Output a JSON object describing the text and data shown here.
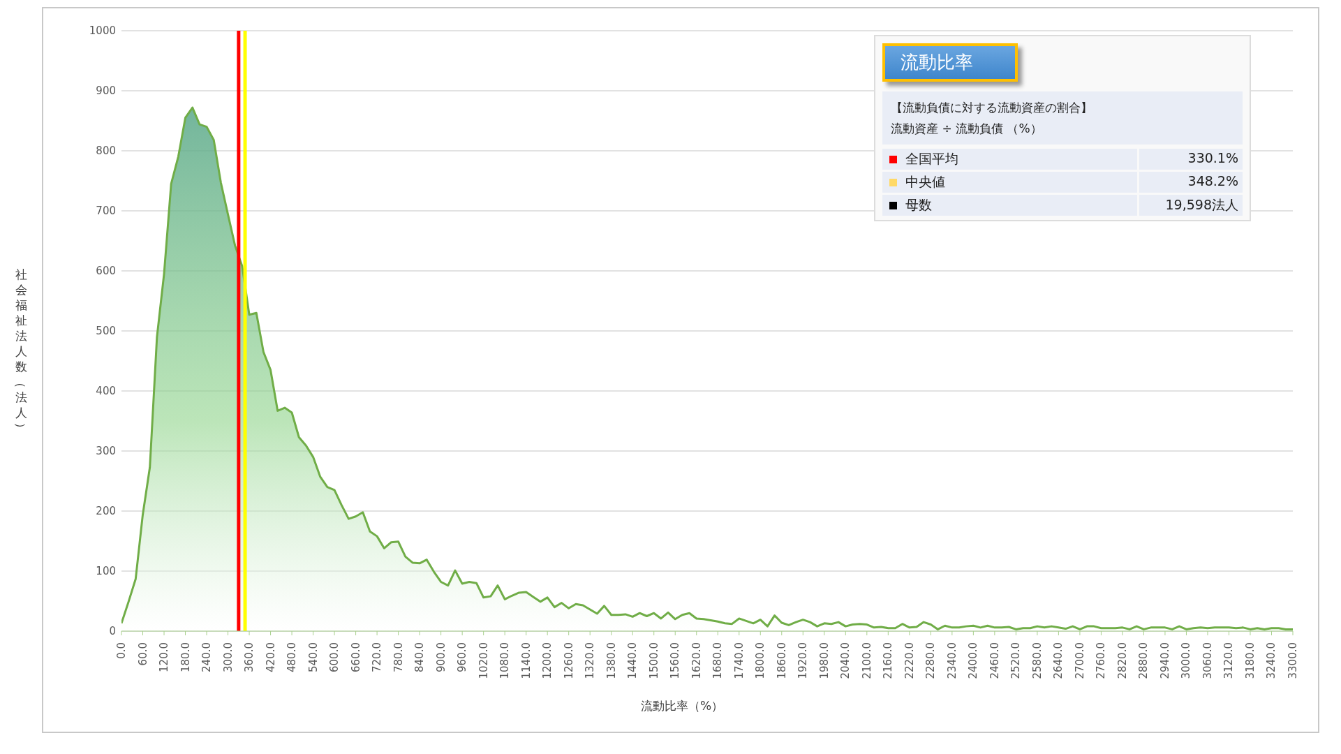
{
  "chart_data": {
    "type": "area",
    "title": "流動比率",
    "subtitle": "【流動負債に対する流動資産の割合】",
    "xlabel": "流動比率（%）",
    "ylabel": "社会福祉法人数（法人）",
    "x": [
      0,
      20,
      40,
      60,
      80,
      100,
      120,
      140,
      160,
      180,
      200,
      220,
      240,
      260,
      280,
      300,
      320,
      340,
      360,
      380,
      400,
      420,
      440,
      460,
      480,
      500,
      520,
      540,
      560,
      580,
      600,
      620,
      640,
      660,
      680,
      700,
      720,
      740,
      760,
      780,
      800,
      820,
      840,
      860,
      880,
      900,
      920,
      940,
      960,
      980,
      1000,
      1020,
      1040,
      1060,
      1080,
      1100,
      1120,
      1140,
      1160,
      1180,
      1200,
      1220,
      1240,
      1260,
      1280,
      1300,
      1320,
      1340,
      1360,
      1380,
      1400,
      1420,
      1440,
      1460,
      1480,
      1500,
      1520,
      1540,
      1560,
      1580,
      1600,
      1620,
      1640,
      1660,
      1680,
      1700,
      1720,
      1740,
      1760,
      1780,
      1800,
      1820,
      1840,
      1860,
      1880,
      1900,
      1920,
      1940,
      1960,
      1980,
      2000,
      2020,
      2040,
      2060,
      2080,
      2100,
      2120,
      2140,
      2160,
      2180,
      2200,
      2220,
      2240,
      2260,
      2280,
      2300,
      2320,
      2340,
      2360,
      2380,
      2400,
      2420,
      2440,
      2460,
      2480,
      2500,
      2520,
      2540,
      2560,
      2580,
      2600,
      2620,
      2640,
      2660,
      2680,
      2700,
      2720,
      2740,
      2760,
      2780,
      2800,
      2820,
      2840,
      2860,
      2880,
      2900,
      2920,
      2940,
      2960,
      2980,
      3000,
      3020,
      3040,
      3060,
      3080,
      3100,
      3120,
      3140,
      3160,
      3180,
      3200,
      3220,
      3240,
      3260,
      3280,
      3300
    ],
    "series": [
      {
        "color": "#70ad47",
        "values": [
          13,
          49,
          87,
          194,
          273,
          490,
          595,
          745,
          790,
          855,
          872,
          844,
          840,
          818,
          747,
          694,
          642,
          608,
          527,
          530,
          465,
          435,
          367,
          372,
          364,
          323,
          309,
          290,
          257,
          240,
          235,
          210,
          187,
          191,
          198,
          166,
          158,
          138,
          148,
          149,
          124,
          114,
          113,
          119,
          99,
          82,
          76,
          101,
          79,
          82,
          80,
          56,
          58,
          76,
          53,
          59,
          64,
          65,
          57,
          49,
          56,
          40,
          47,
          38,
          45,
          43,
          36,
          29,
          42,
          27,
          27,
          28,
          24,
          30,
          25,
          30,
          21,
          31,
          20,
          27,
          30,
          21,
          20,
          18,
          16,
          13,
          12,
          21,
          17,
          13,
          19,
          8,
          26,
          14,
          10,
          15,
          19,
          15,
          8,
          13,
          12,
          15,
          8,
          11,
          12,
          11,
          6,
          7,
          5,
          5,
          12,
          6,
          7,
          15,
          11,
          3,
          9,
          6,
          6,
          8,
          9,
          6,
          9,
          6,
          6,
          7,
          3,
          5,
          5,
          8,
          6,
          8,
          6,
          4,
          8,
          3,
          8,
          8,
          5,
          5,
          5,
          6,
          3,
          8,
          3,
          6,
          6,
          6,
          3,
          8,
          3,
          5,
          6,
          5,
          6,
          6,
          6,
          5,
          6,
          3,
          5,
          3,
          5,
          5,
          3,
          3
        ]
      }
    ],
    "xlim": [
      0,
      3300
    ],
    "xticks": [
      {
        "value": 0,
        "label": "0.0"
      },
      {
        "value": 60,
        "label": "60.0"
      },
      {
        "value": 120,
        "label": "120.0"
      },
      {
        "value": 180,
        "label": "180.0"
      },
      {
        "value": 240,
        "label": "240.0"
      },
      {
        "value": 300,
        "label": "300.0"
      },
      {
        "value": 360,
        "label": "360.0"
      },
      {
        "value": 420,
        "label": "420.0"
      },
      {
        "value": 480,
        "label": "480.0"
      },
      {
        "value": 540,
        "label": "540.0"
      },
      {
        "value": 600,
        "label": "600.0"
      },
      {
        "value": 660,
        "label": "660.0"
      },
      {
        "value": 720,
        "label": "720.0"
      },
      {
        "value": 780,
        "label": "780.0"
      },
      {
        "value": 840,
        "label": "840.0"
      },
      {
        "value": 900,
        "label": "900.0"
      },
      {
        "value": 960,
        "label": "960.0"
      },
      {
        "value": 1020,
        "label": "1020.0"
      },
      {
        "value": 1080,
        "label": "1080.0"
      },
      {
        "value": 1140,
        "label": "1140.0"
      },
      {
        "value": 1200,
        "label": "1200.0"
      },
      {
        "value": 1260,
        "label": "1260.0"
      },
      {
        "value": 1320,
        "label": "1320.0"
      },
      {
        "value": 1380,
        "label": "1380.0"
      },
      {
        "value": 1440,
        "label": "1440.0"
      },
      {
        "value": 1500,
        "label": "1500.0"
      },
      {
        "value": 1560,
        "label": "1560.0"
      },
      {
        "value": 1620,
        "label": "1620.0"
      },
      {
        "value": 1680,
        "label": "1680.0"
      },
      {
        "value": 1740,
        "label": "1740.0"
      },
      {
        "value": 1800,
        "label": "1800.0"
      },
      {
        "value": 1860,
        "label": "1860.0"
      },
      {
        "value": 1920,
        "label": "1920.0"
      },
      {
        "value": 1980,
        "label": "1980.0"
      },
      {
        "value": 2040,
        "label": "2040.0"
      },
      {
        "value": 2100,
        "label": "2100.0"
      },
      {
        "value": 2160,
        "label": "2160.0"
      },
      {
        "value": 2220,
        "label": "2220.0"
      },
      {
        "value": 2280,
        "label": "2280.0"
      },
      {
        "value": 2340,
        "label": "2340.0"
      },
      {
        "value": 2400,
        "label": "2400.0"
      },
      {
        "value": 2460,
        "label": "2460.0"
      },
      {
        "value": 2520,
        "label": "2520.0"
      },
      {
        "value": 2580,
        "label": "2580.0"
      },
      {
        "value": 2640,
        "label": "2640.0"
      },
      {
        "value": 2700,
        "label": "2700.0"
      },
      {
        "value": 2760,
        "label": "2760.0"
      },
      {
        "value": 2820,
        "label": "2820.0"
      },
      {
        "value": 2880,
        "label": "2880.0"
      },
      {
        "value": 2940,
        "label": "2940.0"
      },
      {
        "value": 3000,
        "label": "3000.0"
      },
      {
        "value": 3060,
        "label": "3060.0"
      },
      {
        "value": 3120,
        "label": "3120.0"
      },
      {
        "value": 3180,
        "label": "3180.0"
      },
      {
        "value": 3240,
        "label": "3240.0"
      },
      {
        "value": 3300,
        "label": "3300.0"
      }
    ],
    "ylim": [
      0,
      1000
    ],
    "yticks": [
      0,
      100,
      200,
      300,
      400,
      500,
      600,
      700,
      800,
      900,
      1000
    ],
    "grid": "y",
    "ref_lines": [
      {
        "axis": "x",
        "value": 330.1,
        "color": "#ff0000"
      },
      {
        "axis": "x",
        "value": 348.2,
        "color": "#ffff00"
      }
    ],
    "annotations": [
      "流動資産 ÷ 流動負債 （%）",
      "全国平均",
      "330.1%",
      "中央値",
      "348.2%",
      "母数",
      "19,598法人"
    ]
  }
}
